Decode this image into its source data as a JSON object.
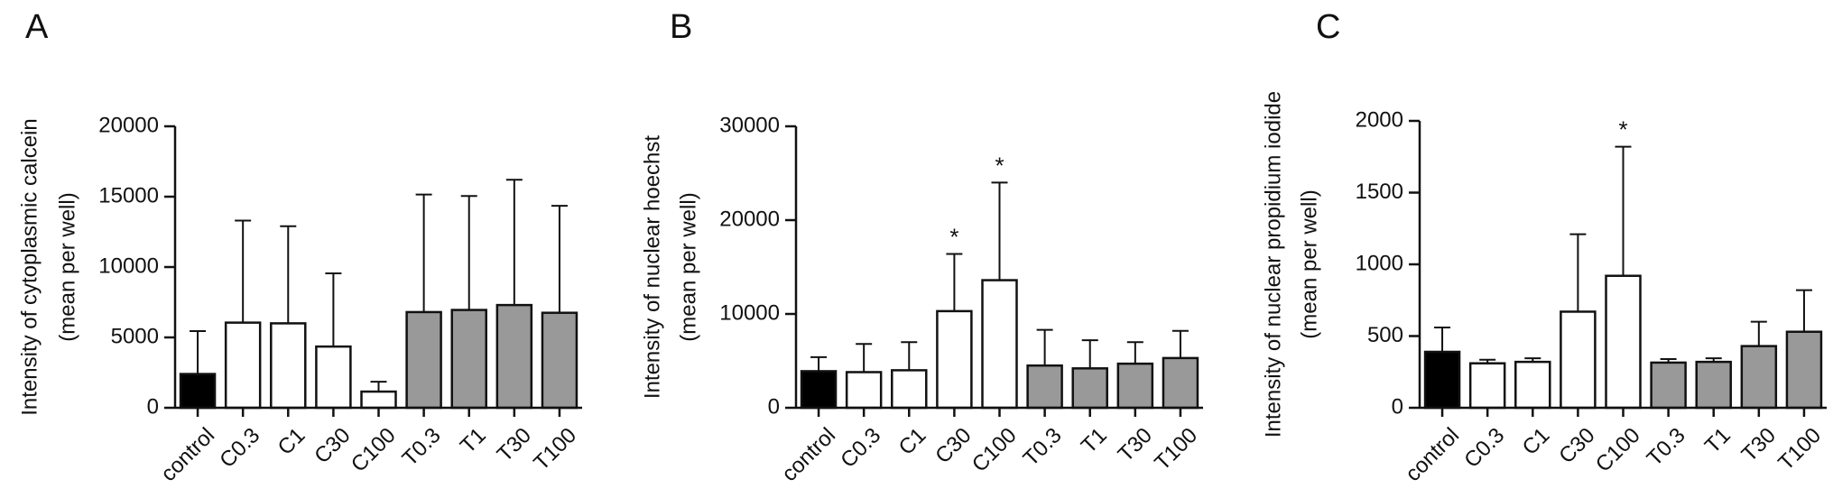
{
  "chart_data": [
    {
      "type": "bar",
      "panel": "A",
      "ylabel": [
        "Intensity of cytoplasmic calcein",
        "(mean per well)"
      ],
      "ylim": [
        0,
        20000
      ],
      "yticks": [
        "0",
        "5000",
        "10000",
        "15000",
        "20000"
      ],
      "categories": [
        "control",
        "C0.3",
        "C1",
        "C30",
        "C100",
        "T0.3",
        "T1",
        "T30",
        "T100"
      ],
      "values": [
        2400,
        6050,
        6000,
        4350,
        1150,
        6800,
        6950,
        7300,
        6750
      ],
      "error": [
        3050,
        7250,
        6900,
        5200,
        700,
        8350,
        8100,
        8900,
        7600
      ],
      "fill_colors": [
        "#000000",
        "#ffffff",
        "#ffffff",
        "#ffffff",
        "#ffffff",
        "#999999",
        "#999999",
        "#999999",
        "#999999"
      ],
      "significance": [
        "",
        "",
        "",
        "",
        "",
        "",
        "",
        "",
        ""
      ]
    },
    {
      "type": "bar",
      "panel": "B",
      "ylabel": [
        "Intensity of nuclear hoechst",
        "(mean per well)"
      ],
      "ylim": [
        0,
        30000
      ],
      "yticks": [
        "0",
        "10000",
        "20000",
        "30000"
      ],
      "categories": [
        "control",
        "C0.3",
        "C1",
        "C30",
        "C100",
        "T0.3",
        "T1",
        "T30",
        "T100"
      ],
      "values": [
        3900,
        3800,
        4000,
        10300,
        13600,
        4500,
        4200,
        4700,
        5300
      ],
      "error": [
        1500,
        3000,
        3000,
        6100,
        10400,
        3800,
        3000,
        2300,
        2900
      ],
      "fill_colors": [
        "#000000",
        "#ffffff",
        "#ffffff",
        "#ffffff",
        "#ffffff",
        "#999999",
        "#999999",
        "#999999",
        "#999999"
      ],
      "significance": [
        "",
        "",
        "",
        "*",
        "*",
        "",
        "",
        "",
        ""
      ]
    },
    {
      "type": "bar",
      "panel": "C",
      "ylabel": [
        "Intensity of nuclear propidium iodide",
        "(mean per well)"
      ],
      "ylim": [
        0,
        2000
      ],
      "yticks": [
        "0",
        "500",
        "1000",
        "1500",
        "2000"
      ],
      "categories": [
        "control",
        "C0.3",
        "C1",
        "C30",
        "C100",
        "T0.3",
        "T1",
        "T30",
        "T100"
      ],
      "values": [
        390,
        310,
        320,
        670,
        920,
        315,
        320,
        430,
        530
      ],
      "error": [
        170,
        25,
        25,
        540,
        900,
        25,
        25,
        170,
        290
      ],
      "fill_colors": [
        "#000000",
        "#ffffff",
        "#ffffff",
        "#ffffff",
        "#ffffff",
        "#999999",
        "#999999",
        "#999999",
        "#999999"
      ],
      "significance": [
        "",
        "",
        "",
        "",
        "*",
        "",
        "",
        "",
        ""
      ]
    }
  ]
}
